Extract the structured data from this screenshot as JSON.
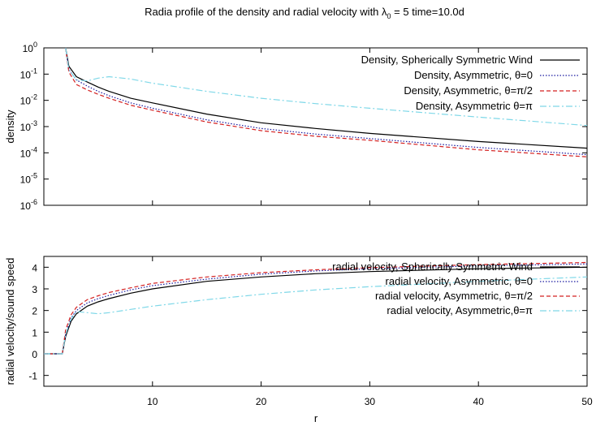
{
  "title": {
    "prefix": "Radia profile of the density and radial velocity with ",
    "symbol": "λ",
    "subscript": "0",
    "suffix": " = 5 time=10.0d"
  },
  "colors": {
    "symmetric": "#000000",
    "theta0": "#1a1aa0",
    "theta_half_pi": "#d42020",
    "theta_pi": "#7fd8e8"
  },
  "chart_data": [
    {
      "type": "line",
      "ylabel": "density",
      "xlabel": "",
      "xlim": [
        0,
        50
      ],
      "ylim": [
        1e-06,
        1
      ],
      "log_y": true,
      "grid": false,
      "legend_position": "top-right",
      "yticks": [
        {
          "value": 1,
          "base": "10",
          "exp": "0"
        },
        {
          "value": 0.1,
          "base": "10",
          "exp": "-1"
        },
        {
          "value": 0.01,
          "base": "10",
          "exp": "-2"
        },
        {
          "value": 0.001,
          "base": "10",
          "exp": "-3"
        },
        {
          "value": 0.0001,
          "base": "10",
          "exp": "-4"
        },
        {
          "value": 1e-05,
          "base": "10",
          "exp": "-5"
        },
        {
          "value": 1e-06,
          "base": "10",
          "exp": "-6"
        }
      ],
      "series": [
        {
          "name": "Density, Spherically Symmetric Wind",
          "color": "#000000",
          "dash": "",
          "x": [
            2,
            2.3,
            3,
            4,
            5,
            6,
            8,
            10,
            15,
            20,
            25,
            30,
            40,
            50
          ],
          "y": [
            1.0,
            0.2,
            0.08,
            0.05,
            0.032,
            0.022,
            0.012,
            0.008,
            0.003,
            0.0014,
            0.00085,
            0.00055,
            0.00027,
            0.00015
          ]
        },
        {
          "name": "Density, Asymmetric, θ=0",
          "color": "#1a1aa0",
          "dash": "1.5,2",
          "x": [
            2,
            2.3,
            3,
            4,
            5,
            6,
            8,
            10,
            15,
            20,
            25,
            30,
            40,
            50
          ],
          "y": [
            1.0,
            0.15,
            0.06,
            0.035,
            0.022,
            0.015,
            0.008,
            0.005,
            0.0018,
            0.00085,
            0.00052,
            0.00035,
            0.00016,
            8.5e-05
          ]
        },
        {
          "name": "Density, Asymmetric, θ=π/2",
          "color": "#d42020",
          "dash": "5,3",
          "x": [
            2,
            2.3,
            3,
            4,
            5,
            6,
            8,
            10,
            15,
            20,
            25,
            30,
            40,
            50
          ],
          "y": [
            1.0,
            0.12,
            0.04,
            0.025,
            0.017,
            0.012,
            0.0065,
            0.0042,
            0.0015,
            0.0007,
            0.00043,
            0.0003,
            0.00013,
            7e-05
          ]
        },
        {
          "name": "Density, Asymmetric θ=π",
          "color": "#7fd8e8",
          "dash": "8,3,2,3",
          "x": [
            2,
            2.3,
            3,
            4,
            5,
            6,
            8,
            10,
            15,
            20,
            25,
            30,
            40,
            50
          ],
          "y": [
            1.0,
            0.15,
            0.06,
            0.055,
            0.07,
            0.08,
            0.065,
            0.045,
            0.022,
            0.012,
            0.0075,
            0.005,
            0.0023,
            0.0011
          ]
        }
      ]
    },
    {
      "type": "line",
      "ylabel": "radial velocity/sound speed",
      "xlabel": "r",
      "xlim": [
        0,
        50
      ],
      "ylim": [
        -1.5,
        4.5
      ],
      "grid": false,
      "legend_position": "top-right",
      "xticks": [
        10,
        20,
        30,
        40,
        50
      ],
      "yticks": [
        -1,
        0,
        1,
        2,
        3,
        4
      ],
      "series": [
        {
          "name": "radial velocity, Spherically Symmetric Wind",
          "color": "#000000",
          "dash": "",
          "x": [
            0,
            1.5,
            1.7,
            2,
            2.5,
            3,
            4,
            5,
            6,
            8,
            10,
            15,
            20,
            25,
            30,
            40,
            50
          ],
          "y": [
            0,
            0,
            0,
            0.8,
            1.5,
            1.85,
            2.2,
            2.4,
            2.55,
            2.8,
            3.0,
            3.35,
            3.55,
            3.7,
            3.8,
            3.93,
            4.0
          ]
        },
        {
          "name": "radial velocity, Asymmetric, θ=0",
          "color": "#1a1aa0",
          "dash": "1.5,2",
          "x": [
            0,
            1.5,
            1.7,
            2,
            2.5,
            3,
            4,
            5,
            6,
            8,
            10,
            15,
            20,
            25,
            30,
            40,
            50
          ],
          "y": [
            0,
            0,
            0,
            0.9,
            1.65,
            2.0,
            2.35,
            2.55,
            2.7,
            2.95,
            3.15,
            3.45,
            3.68,
            3.83,
            3.93,
            4.06,
            4.15
          ]
        },
        {
          "name": "radial velocity, Asymmetric, θ=π/2",
          "color": "#d42020",
          "dash": "5,3",
          "x": [
            0,
            1.5,
            1.7,
            2,
            2.5,
            3,
            4,
            5,
            6,
            8,
            10,
            15,
            20,
            25,
            30,
            40,
            50
          ],
          "y": [
            0,
            0,
            0,
            1.1,
            1.8,
            2.15,
            2.5,
            2.68,
            2.83,
            3.05,
            3.25,
            3.55,
            3.75,
            3.88,
            3.98,
            4.12,
            4.22
          ]
        },
        {
          "name": "radial velocity, Asymmetric,θ=π",
          "color": "#7fd8e8",
          "dash": "8,3,2,3",
          "x": [
            0,
            1.5,
            1.7,
            2,
            2.5,
            3,
            4,
            5,
            6,
            8,
            10,
            15,
            20,
            25,
            30,
            40,
            50
          ],
          "y": [
            0,
            0,
            0,
            0.9,
            1.6,
            1.95,
            1.9,
            1.85,
            1.9,
            2.05,
            2.2,
            2.5,
            2.75,
            2.95,
            3.1,
            3.35,
            3.55
          ]
        }
      ]
    }
  ]
}
